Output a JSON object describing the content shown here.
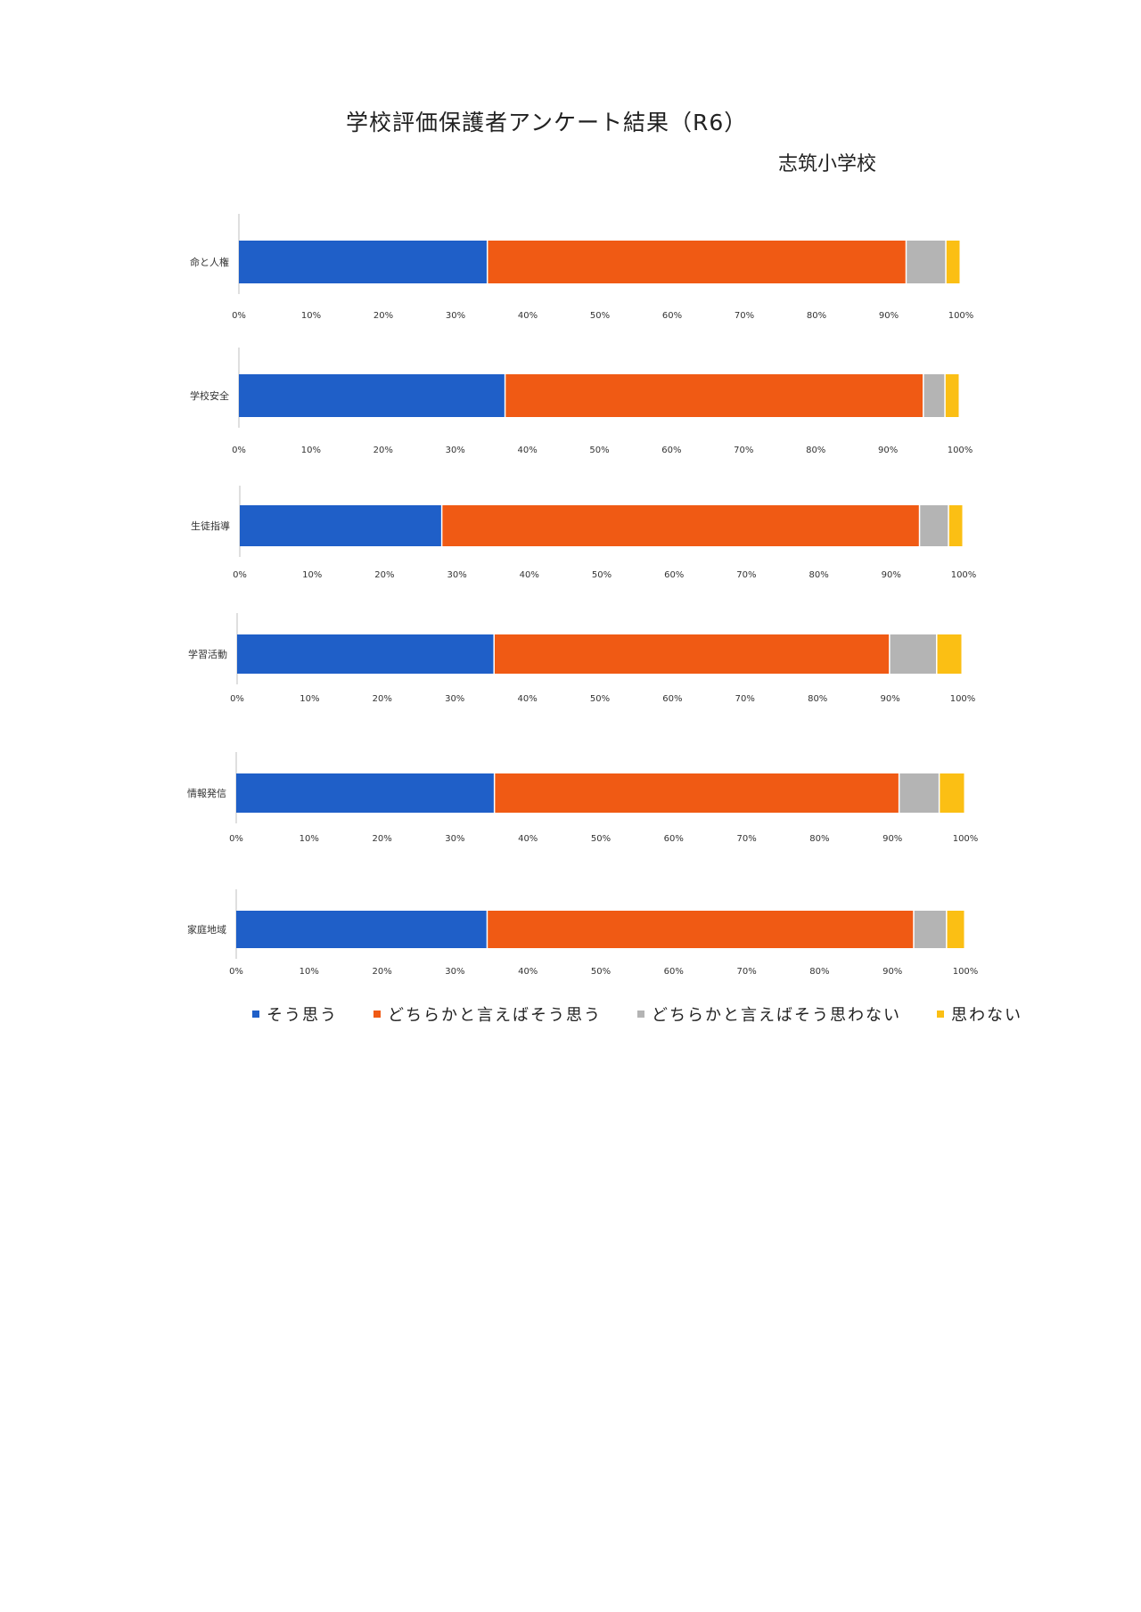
{
  "title": "学校評価保護者アンケート結果（R6）",
  "school": "志筑小学校",
  "chart_data": {
    "type": "bar",
    "orientation": "horizontal",
    "stacked": "percent",
    "tick_labels": [
      "0%",
      "10%",
      "20%",
      "30%",
      "40%",
      "50%",
      "60%",
      "70%",
      "80%",
      "90%",
      "100%"
    ],
    "xlim": [
      0,
      100
    ],
    "grid": false,
    "legend_position": "bottom",
    "series": [
      {
        "name": "そう思う",
        "color": "#1f5fc8"
      },
      {
        "name": "どちらかと言えばそう思う",
        "color": "#f05a14"
      },
      {
        "name": "どちらかと言えばそう思わない",
        "color": "#b4b4b4"
      },
      {
        "name": "思わない",
        "color": "#fbbf14"
      }
    ],
    "charts": [
      {
        "category": "命と人権",
        "values": [
          34.5,
          58.0,
          5.5,
          2.0
        ]
      },
      {
        "category": "学校安全",
        "values": [
          37.0,
          58.0,
          3.0,
          2.0
        ]
      },
      {
        "category": "生徒指導",
        "values": [
          28.0,
          66.0,
          4.0,
          2.0
        ]
      },
      {
        "category": "学習活動",
        "values": [
          35.5,
          54.5,
          6.5,
          3.5
        ]
      },
      {
        "category": "情報発信",
        "values": [
          35.5,
          55.5,
          5.5,
          3.5
        ]
      },
      {
        "category": "家庭地域",
        "values": [
          34.5,
          58.5,
          4.5,
          2.5
        ]
      }
    ]
  }
}
